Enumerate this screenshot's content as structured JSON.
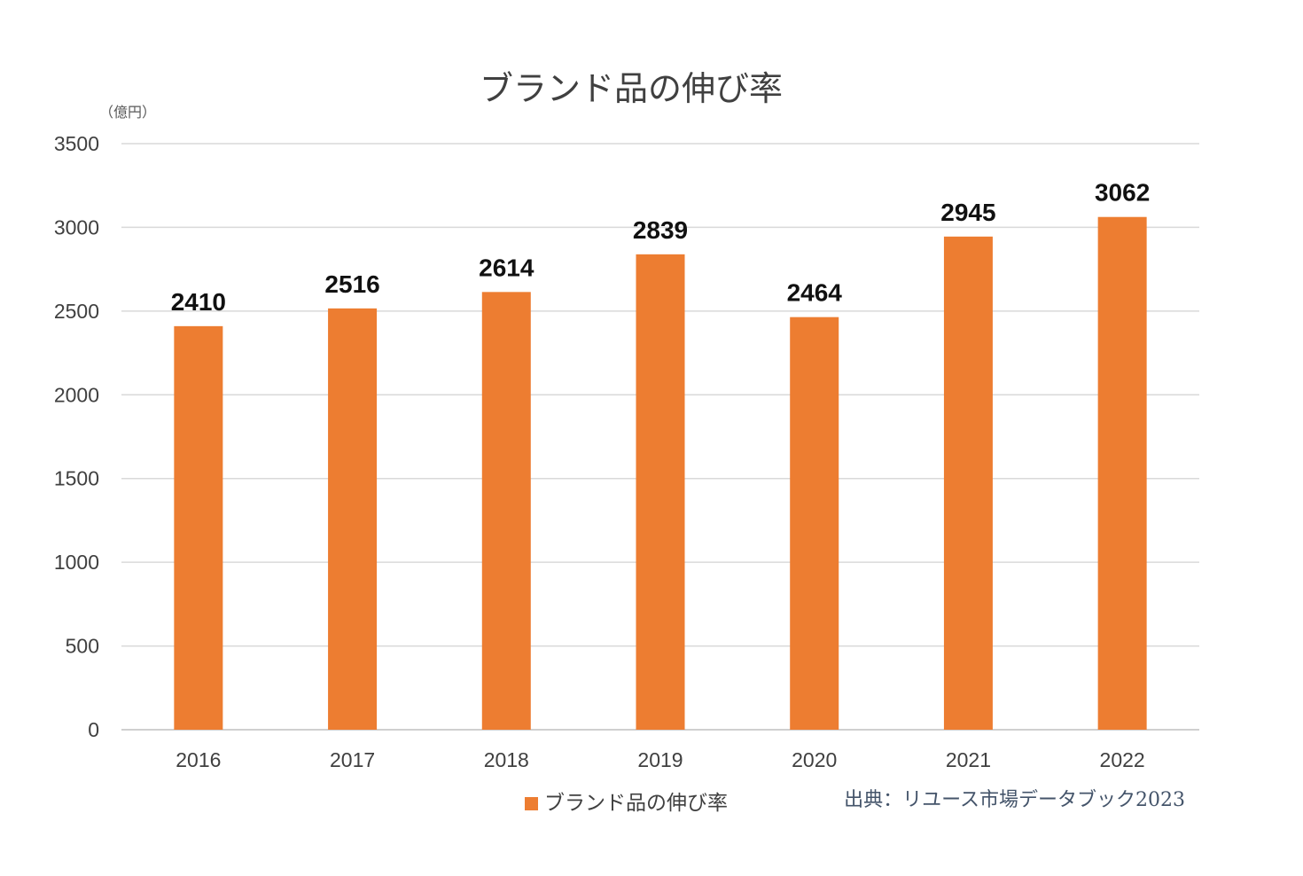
{
  "chart_data": {
    "type": "bar",
    "title": "ブランド品の伸び率",
    "unit_label": "（億円）",
    "categories": [
      "2016",
      "2017",
      "2018",
      "2019",
      "2020",
      "2021",
      "2022"
    ],
    "series": [
      {
        "name": "ブランド品の伸び率",
        "values": [
          2410,
          2516,
          2614,
          2839,
          2464,
          2945,
          3062
        ],
        "color": "#ed7d31"
      }
    ],
    "ylim": [
      0,
      3500
    ],
    "yticks": [
      0,
      500,
      1000,
      1500,
      2000,
      2500,
      3000,
      3500
    ],
    "grid": true,
    "data_labels": true,
    "legend_position": "bottom"
  },
  "source_note": "出典：リユース市場データブック2023"
}
